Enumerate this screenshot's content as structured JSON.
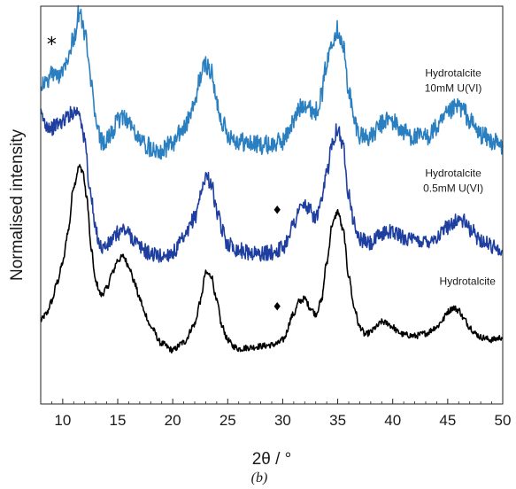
{
  "chart_data": {
    "type": "line",
    "xlabel": "2θ / °",
    "ylabel": "Normalised intensity",
    "panel_label": "(b)",
    "xlim": [
      8,
      50
    ],
    "ylim": [
      0,
      3.1
    ],
    "y_ticks_shown": false,
    "x_ticks": [
      10,
      15,
      20,
      25,
      30,
      35,
      40,
      45,
      50
    ],
    "x_tick_labels": [
      "10",
      "15",
      "20",
      "25",
      "30",
      "35",
      "40",
      "45",
      "50"
    ],
    "grid": false,
    "legend": "none",
    "annotations": [
      {
        "text": "*",
        "x": 9.0,
        "y": 2.75
      },
      {
        "text": "♦",
        "x": 29.5,
        "y": 1.48
      },
      {
        "text": "♦",
        "x": 29.5,
        "y": 0.73
      }
    ],
    "series": [
      {
        "name": "Hydrotalcite",
        "color": "#000000",
        "noise": 0.008,
        "x": [
          8.0,
          8.5,
          9.0,
          9.5,
          10.0,
          10.5,
          11.0,
          11.5,
          11.8,
          12.2,
          12.6,
          13.0,
          13.5,
          14.0,
          14.5,
          15.0,
          15.5,
          16.0,
          16.5,
          17.0,
          17.5,
          18.0,
          19.0,
          20.0,
          21.0,
          22.0,
          22.5,
          23.0,
          23.5,
          24.0,
          24.5,
          25.0,
          25.5,
          26.0,
          27.0,
          28.0,
          29.0,
          29.5,
          30.0,
          31.0,
          31.5,
          32.0,
          32.5,
          33.0,
          33.5,
          34.0,
          34.5,
          35.0,
          35.5,
          36.0,
          36.5,
          37.0,
          37.5,
          38.0,
          38.5,
          39.0,
          39.5,
          40.0,
          40.5,
          41.0,
          42.0,
          43.0,
          44.0,
          44.5,
          45.0,
          45.5,
          46.0,
          46.5,
          47.0,
          47.5,
          48.0,
          49.0,
          50.0
        ],
        "y": [
          0.65,
          0.7,
          0.8,
          0.95,
          1.1,
          1.35,
          1.7,
          1.85,
          1.82,
          1.6,
          1.2,
          0.95,
          0.85,
          0.9,
          1.02,
          1.12,
          1.15,
          1.08,
          0.95,
          0.82,
          0.7,
          0.6,
          0.47,
          0.42,
          0.48,
          0.62,
          0.8,
          1.02,
          1.0,
          0.8,
          0.6,
          0.5,
          0.45,
          0.43,
          0.44,
          0.45,
          0.46,
          0.47,
          0.5,
          0.7,
          0.8,
          0.82,
          0.75,
          0.7,
          0.8,
          1.1,
          1.4,
          1.5,
          1.35,
          1.0,
          0.75,
          0.6,
          0.54,
          0.56,
          0.6,
          0.64,
          0.63,
          0.6,
          0.56,
          0.54,
          0.53,
          0.55,
          0.6,
          0.65,
          0.72,
          0.75,
          0.73,
          0.66,
          0.6,
          0.55,
          0.52,
          0.5,
          0.52
        ]
      },
      {
        "name": "Hydrotalcite\n0.5mM U(VI)",
        "color": "#1f3fa0",
        "noise": 0.02,
        "x": [
          8.0,
          8.5,
          9.0,
          9.5,
          10.0,
          10.5,
          11.0,
          11.5,
          12.0,
          12.5,
          13.0,
          13.5,
          14.0,
          14.5,
          15.0,
          15.5,
          16.0,
          16.5,
          17.0,
          18.0,
          19.0,
          20.0,
          21.0,
          22.0,
          22.5,
          23.0,
          23.5,
          24.0,
          24.5,
          25.0,
          26.0,
          27.0,
          28.0,
          29.0,
          29.5,
          30.0,
          31.0,
          31.5,
          32.0,
          32.5,
          33.0,
          33.5,
          34.0,
          34.5,
          35.0,
          35.5,
          36.0,
          36.5,
          37.0,
          38.0,
          39.0,
          39.5,
          40.0,
          41.0,
          42.0,
          43.0,
          44.0,
          45.0,
          45.5,
          46.0,
          46.5,
          47.0,
          48.0,
          49.0,
          50.0
        ],
        "y": [
          2.25,
          2.18,
          2.15,
          2.18,
          2.2,
          2.25,
          2.28,
          2.28,
          2.05,
          1.65,
          1.35,
          1.22,
          1.23,
          1.28,
          1.33,
          1.36,
          1.33,
          1.28,
          1.22,
          1.17,
          1.15,
          1.18,
          1.28,
          1.45,
          1.62,
          1.78,
          1.72,
          1.5,
          1.35,
          1.25,
          1.2,
          1.18,
          1.17,
          1.18,
          1.2,
          1.22,
          1.4,
          1.52,
          1.55,
          1.5,
          1.45,
          1.55,
          1.8,
          2.05,
          2.15,
          2.0,
          1.65,
          1.4,
          1.28,
          1.25,
          1.32,
          1.35,
          1.34,
          1.3,
          1.27,
          1.27,
          1.3,
          1.38,
          1.42,
          1.44,
          1.42,
          1.36,
          1.28,
          1.23,
          1.2
        ]
      },
      {
        "name": "Hydrotalcite\n10mM U(VI)",
        "color": "#2a7fc0",
        "noise": 0.025,
        "x": [
          8.0,
          8.5,
          9.0,
          9.5,
          10.0,
          10.5,
          11.0,
          11.5,
          12.0,
          12.5,
          13.0,
          13.5,
          14.0,
          14.5,
          15.0,
          15.5,
          16.0,
          16.5,
          17.0,
          18.0,
          19.0,
          20.0,
          21.0,
          22.0,
          22.5,
          23.0,
          23.5,
          24.0,
          24.5,
          25.0,
          26.0,
          27.0,
          28.0,
          29.0,
          30.0,
          31.0,
          31.5,
          32.0,
          32.5,
          33.0,
          33.5,
          34.0,
          34.5,
          35.0,
          35.5,
          36.0,
          36.5,
          37.0,
          38.0,
          39.0,
          39.5,
          40.0,
          41.0,
          42.0,
          43.0,
          44.0,
          45.0,
          45.5,
          46.0,
          46.5,
          47.0,
          48.0,
          49.0,
          50.0
        ],
        "y": [
          2.5,
          2.5,
          2.58,
          2.55,
          2.62,
          2.72,
          2.85,
          3.05,
          2.9,
          2.55,
          2.2,
          2.05,
          2.05,
          2.12,
          2.2,
          2.25,
          2.2,
          2.12,
          2.05,
          2.0,
          1.98,
          2.03,
          2.15,
          2.32,
          2.55,
          2.65,
          2.58,
          2.35,
          2.2,
          2.1,
          2.05,
          2.03,
          2.02,
          2.02,
          2.05,
          2.2,
          2.3,
          2.35,
          2.3,
          2.28,
          2.4,
          2.65,
          2.85,
          2.92,
          2.78,
          2.45,
          2.2,
          2.1,
          2.08,
          2.18,
          2.22,
          2.2,
          2.12,
          2.08,
          2.08,
          2.15,
          2.25,
          2.3,
          2.32,
          2.28,
          2.2,
          2.1,
          2.05,
          2.0
        ]
      }
    ],
    "series_labels": [
      {
        "lines": [
          "Hydrotalcite",
          "10mM U(VI)"
        ],
        "anchor_x": 45.5,
        "anchor_y": 2.55
      },
      {
        "lines": [
          "Hydrotalcite",
          "0.5mM U(VI)"
        ],
        "anchor_x": 45.5,
        "anchor_y": 1.77
      },
      {
        "lines": [
          "Hydrotalcite"
        ],
        "anchor_x": 46.8,
        "anchor_y": 0.93
      }
    ]
  }
}
